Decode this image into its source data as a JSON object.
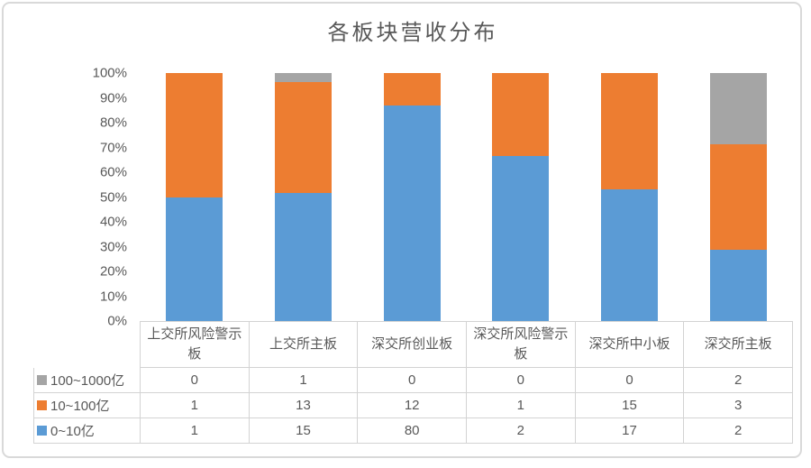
{
  "title": "各板块营收分布",
  "colors": {
    "series_blue": "#5B9BD5",
    "series_orange": "#ED7D31",
    "series_gray": "#A5A5A5",
    "text": "#595959",
    "table_border": "#D3D3D3",
    "frame_border": "#D9D9D9"
  },
  "chart_data": {
    "type": "bar",
    "subtype": "100%-stacked-column",
    "title": "各板块营收分布",
    "categories": [
      "上交所风险警示板",
      "上交所主板",
      "深交所创业板",
      "深交所风险警示板",
      "深交所中小板",
      "深交所主板"
    ],
    "series": [
      {
        "name": "0~10亿",
        "color": "#5B9BD5",
        "values": [
          1,
          15,
          80,
          2,
          17,
          2
        ]
      },
      {
        "name": "10~100亿",
        "color": "#ED7D31",
        "values": [
          1,
          13,
          12,
          1,
          15,
          3
        ]
      },
      {
        "name": "100~1000亿",
        "color": "#A5A5A5",
        "values": [
          0,
          1,
          0,
          0,
          0,
          2
        ]
      }
    ],
    "y_ticks": [
      "0%",
      "10%",
      "20%",
      "30%",
      "40%",
      "50%",
      "60%",
      "70%",
      "80%",
      "90%",
      "100%"
    ],
    "ylim": [
      0,
      100
    ],
    "grid": false,
    "legend_position": "data-table-left",
    "data_table_rows_top_to_bottom": [
      "100~1000亿",
      "10~100亿",
      "0~10亿"
    ]
  }
}
